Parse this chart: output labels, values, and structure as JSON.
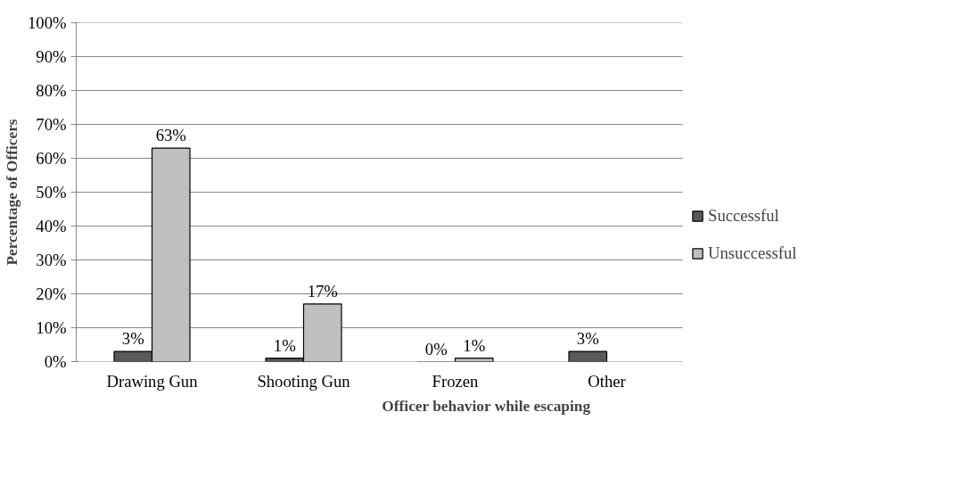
{
  "chart_data": {
    "type": "bar",
    "xlabel": "Officer behavior while escaping",
    "ylabel": "Percentage of Officers",
    "categories": [
      "Drawing Gun",
      "Shooting Gun",
      "Frozen",
      "Other"
    ],
    "series": [
      {
        "name": "Successful",
        "color": "#595959",
        "values": [
          3,
          1,
          0,
          3
        ],
        "value_labels": [
          "3%",
          "1%",
          "0%",
          "3%"
        ]
      },
      {
        "name": "Unsuccessful",
        "color": "#bfbfbf",
        "values": [
          63,
          17,
          1,
          null
        ],
        "value_labels": [
          "63%",
          "17%",
          "1%",
          null
        ]
      }
    ],
    "ylim": [
      0,
      100
    ],
    "yticks": [
      {
        "value": 0,
        "label": "0%"
      },
      {
        "value": 10,
        "label": "10%"
      },
      {
        "value": 20,
        "label": "20%"
      },
      {
        "value": 30,
        "label": "30%"
      },
      {
        "value": 40,
        "label": "40%"
      },
      {
        "value": 50,
        "label": "50%"
      },
      {
        "value": 60,
        "label": "60%"
      },
      {
        "value": 70,
        "label": "70%"
      },
      {
        "value": 80,
        "label": "80%"
      },
      {
        "value": 90,
        "label": "90%"
      },
      {
        "value": 100,
        "label": "100%"
      }
    ],
    "grid": "y",
    "legend": "right"
  }
}
